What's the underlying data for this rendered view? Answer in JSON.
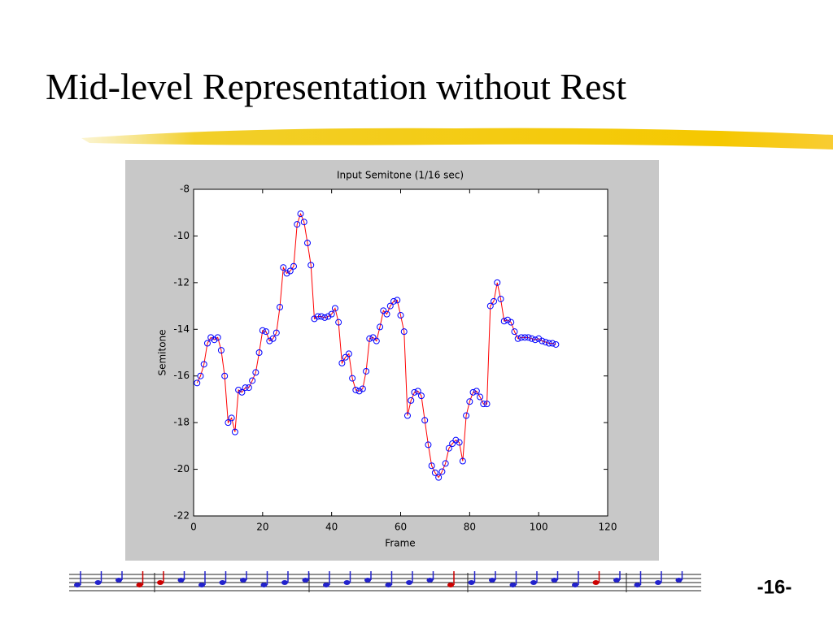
{
  "slide": {
    "title": "Mid-level Representation without Rest",
    "page_number": "-16-"
  },
  "chart_data": {
    "type": "line",
    "title": "Input Semitone (1/16 sec)",
    "xlabel": "Frame",
    "ylabel": "Semitone",
    "x": [
      1,
      2,
      3,
      4,
      5,
      6,
      7,
      8,
      9,
      10,
      11,
      12,
      13,
      14,
      15,
      16,
      17,
      18,
      19,
      20,
      21,
      22,
      23,
      24,
      25,
      26,
      27,
      28,
      29,
      30,
      31,
      32,
      33,
      34,
      35,
      36,
      37,
      38,
      39,
      40,
      41,
      42,
      43,
      44,
      45,
      46,
      47,
      48,
      49,
      50,
      51,
      52,
      53,
      54,
      55,
      56,
      57,
      58,
      59,
      60,
      61,
      62,
      63,
      64,
      65,
      66,
      67,
      68,
      69,
      70,
      71,
      72,
      73,
      74,
      75,
      76,
      77,
      78,
      79,
      80,
      81,
      82,
      83,
      84,
      85,
      86,
      87,
      88,
      89,
      90,
      91,
      92,
      93,
      94,
      95,
      96,
      97,
      98,
      99,
      100,
      101,
      102,
      103,
      104,
      105
    ],
    "values": [
      -16.3,
      -16.0,
      -15.5,
      -14.6,
      -14.35,
      -14.45,
      -14.35,
      -14.9,
      -16.0,
      -18.0,
      -17.8,
      -18.4,
      -16.6,
      -16.7,
      -16.5,
      -16.5,
      -16.2,
      -15.85,
      -15.0,
      -14.05,
      -14.1,
      -14.5,
      -14.4,
      -14.15,
      -13.05,
      -11.35,
      -11.6,
      -11.5,
      -11.3,
      -9.5,
      -9.05,
      -9.4,
      -10.3,
      -11.25,
      -13.55,
      -13.45,
      -13.45,
      -13.5,
      -13.45,
      -13.35,
      -13.1,
      -13.7,
      -15.45,
      -15.2,
      -15.05,
      -16.1,
      -16.6,
      -16.65,
      -16.55,
      -15.8,
      -14.4,
      -14.35,
      -14.5,
      -13.9,
      -13.2,
      -13.35,
      -13.0,
      -12.8,
      -12.75,
      -13.4,
      -14.1,
      -17.7,
      -17.05,
      -16.7,
      -16.65,
      -16.85,
      -17.9,
      -18.95,
      -19.85,
      -20.15,
      -20.35,
      -20.1,
      -19.75,
      -19.1,
      -18.9,
      -18.75,
      -18.85,
      -19.65,
      -17.7,
      -17.1,
      -16.7,
      -16.65,
      -16.9,
      -17.2,
      -17.2,
      -13.0,
      -12.8,
      -12.0,
      -12.7,
      -13.65,
      -13.6,
      -13.7,
      -14.1,
      -14.4,
      -14.35,
      -14.35,
      -14.35,
      -14.4,
      -14.45,
      -14.4,
      -14.5,
      -14.55,
      -14.6,
      -14.6,
      -14.65
    ],
    "color": "red",
    "marker_color": "blue",
    "xlim": [
      0,
      120
    ],
    "xticks": [
      0,
      20,
      40,
      60,
      80,
      100,
      120
    ],
    "ylim": [
      -22,
      -8
    ],
    "yticks": [
      -8,
      -10,
      -12,
      -14,
      -16,
      -18,
      -20,
      -22
    ]
  }
}
